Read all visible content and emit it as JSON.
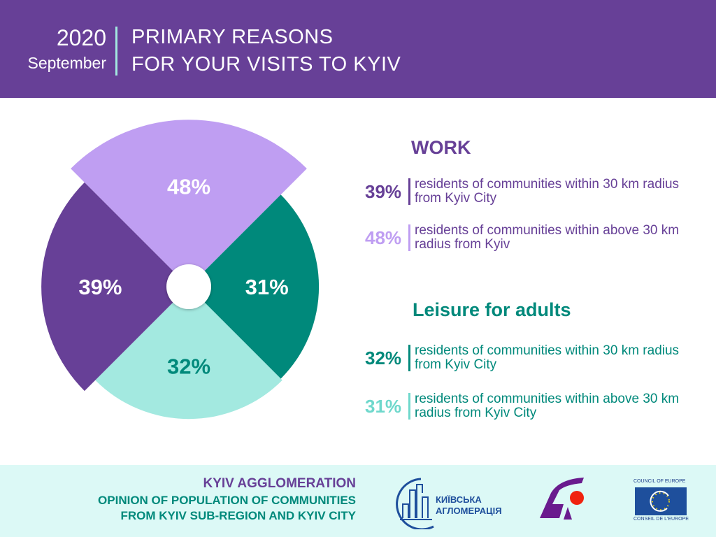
{
  "header": {
    "year": "2020",
    "month": "September",
    "title_line1": "PRIMARY REASONS",
    "title_line2": "FOR YOUR VISITS TO KYIV"
  },
  "chart_data": {
    "type": "polar-area",
    "title": "PRIMARY REASONS FOR YOUR VISITS TO KYIV",
    "segments": [
      {
        "label": "48%",
        "value": 48,
        "category": "Work",
        "group": "residents of communities within above 30 km radius from Kyiv",
        "color": "#bf9ef2",
        "text_color": "#ffffff"
      },
      {
        "label": "31%",
        "value": 31,
        "category": "Leisure for adults",
        "group": "residents of communities within above 30 km radius from Kyiv City",
        "color": "#00897b",
        "text_color": "#ffffff"
      },
      {
        "label": "32%",
        "value": 32,
        "category": "Leisure for adults",
        "group": "residents of communities within 30 km radius from Kyiv City",
        "color": "#a3e9e0",
        "text_color": "#00897b"
      },
      {
        "label": "39%",
        "value": 39,
        "category": "Work",
        "group": "residents of communities within 30 km radius from Kyiv City",
        "color": "#674097",
        "text_color": "#ffffff"
      }
    ]
  },
  "legend": {
    "work_title": "WORK",
    "work": [
      {
        "pct": "39%",
        "text": "residents of communities within 30 km radius from Kyiv City",
        "color": "#674097"
      },
      {
        "pct": "48%",
        "text": "residents of communities within above 30 km radius from Kyiv",
        "color": "#bf9ef2"
      }
    ],
    "leisure_title": "Leisure for adults",
    "leisure": [
      {
        "pct": "32%",
        "text": "residents of communities within 30 km radius from Kyiv City",
        "color": "#00897b"
      },
      {
        "pct": "31%",
        "text": "residents of communities within above 30 km radius from Kyiv City",
        "color": "#6fd8cc"
      }
    ]
  },
  "footer": {
    "line1": "KYIV AGGLOMERATION",
    "line2": "OPINION OF POPULATION OF COMMUNITIES",
    "line3": "FROM KYIV SUB-REGION AND KYIV CITY",
    "logo1_line1": "КИЇВСЬКА",
    "logo1_line2": "АГЛОМЕРАЦІЯ",
    "coe_top": "COUNCIL OF EUROPE",
    "coe_bottom": "CONSEIL DE L'EUROPE"
  }
}
